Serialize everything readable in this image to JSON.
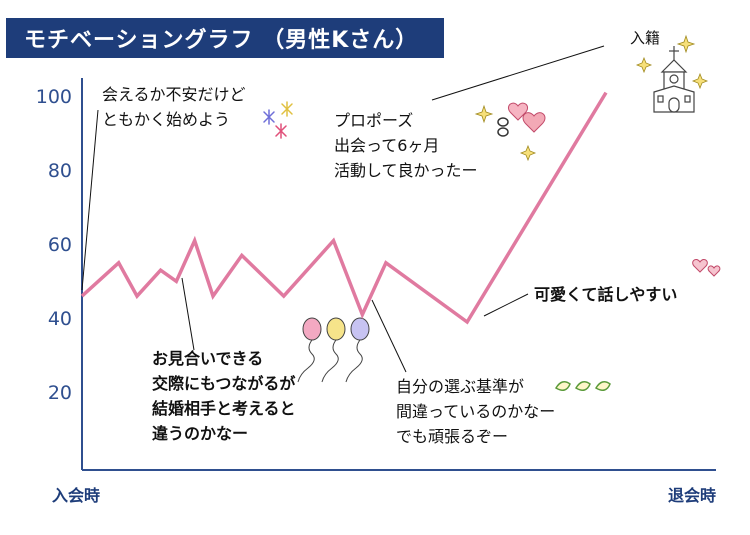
{
  "title": "モチベーショングラフ （男性Kさん）",
  "colors": {
    "line": "#e07aa0",
    "title_bg": "#1e3d7a",
    "axis": "#2f4f8f"
  },
  "chart_data": {
    "type": "line",
    "title": "モチベーショングラフ （男性Kさん）",
    "y_ticks": [
      "100",
      "80",
      "60",
      "40",
      "20"
    ],
    "ylim": [
      0,
      105
    ],
    "x_start_label": "入会時",
    "x_end_label": "退会時",
    "grid": false,
    "series": [
      {
        "values": [
          {
            "x": 0.0,
            "y": 47
          },
          {
            "x": 0.07,
            "y": 56
          },
          {
            "x": 0.105,
            "y": 47
          },
          {
            "x": 0.15,
            "y": 54
          },
          {
            "x": 0.18,
            "y": 51
          },
          {
            "x": 0.215,
            "y": 62
          },
          {
            "x": 0.25,
            "y": 47
          },
          {
            "x": 0.305,
            "y": 58
          },
          {
            "x": 0.385,
            "y": 47
          },
          {
            "x": 0.48,
            "y": 62
          },
          {
            "x": 0.535,
            "y": 42
          },
          {
            "x": 0.58,
            "y": 56
          },
          {
            "x": 0.735,
            "y": 40
          },
          {
            "x": 1.0,
            "y": 102
          }
        ]
      }
    ],
    "annotations": [
      "会えるか不安だけど\nともかく始めよう",
      "お見合いできる\n交際にもつながるが\n結婚相手と考えると\n違うのかなー",
      "自分の選ぶ基準が\n間違っているのかなー\nでも頑張るぞー",
      "可愛くて話しやすい",
      "プロポーズ\n出会って6ヶ月\n活動して良かったー",
      "入籍"
    ]
  }
}
